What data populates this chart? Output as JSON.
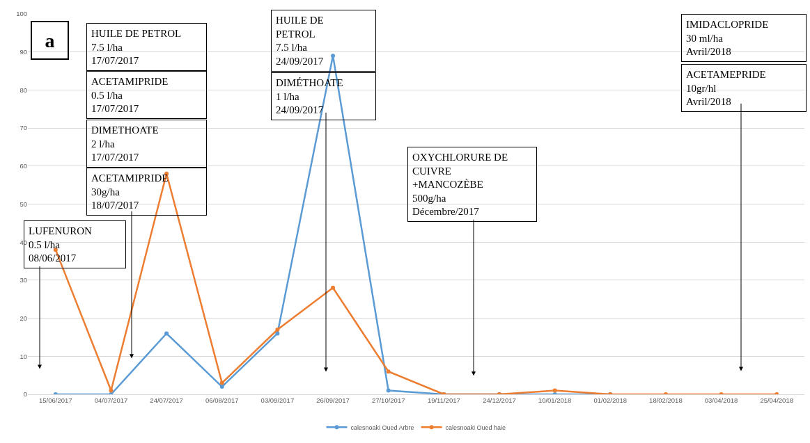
{
  "chart_data": {
    "type": "line",
    "categories": [
      "15/06/2017",
      "04/07/2017",
      "24/07/2017",
      "06/08/2017",
      "03/09/2017",
      "26/09/2017",
      "27/10/2017",
      "19/11/2017",
      "24/12/2017",
      "10/01/2018",
      "01/02/2018",
      "18/02/2018",
      "03/04/2018",
      "25/04/2018"
    ],
    "series": [
      {
        "name": "calesnoaki Oued Arbre",
        "color": "#5b9bd5",
        "values": [
          0,
          0,
          16,
          2,
          16,
          89,
          1,
          0,
          0,
          0,
          0,
          null,
          null,
          null
        ]
      },
      {
        "name": "calesnoaki Oued haie",
        "color": "#ed7d31",
        "values": [
          38,
          1,
          58,
          3,
          17,
          28,
          6,
          0,
          0,
          1,
          0,
          0,
          0,
          0
        ]
      }
    ],
    "ylim": [
      0,
      100
    ],
    "yticks": [
      0,
      10,
      20,
      30,
      40,
      50,
      60,
      70,
      80,
      90,
      100
    ],
    "grid": "y",
    "legend": "bottom",
    "marker": "circle",
    "line_style": "solid",
    "annotations": [
      "a",
      "HUILE DE PETROL\n7.5 l/ha\n17/07/2017",
      "ACETAMIPRIDE\n0.5 l/ha\n17/07/2017",
      "DIMETHOATE\n2 l/ha\n17/07/2017",
      "ACETAMIPRIDE\n30g/ha\n18/07/2017",
      "HUILE DE\nPETROL\n7.5 l/ha\n24/09/2017",
      "DIMÉTHOATE\n1 l/ha\n24/09/2017",
      "OXYCHLORURE DE\nCUIVRE\n+MANCOZÈBE\n500g/ha\nDécembre/2017",
      "IMIDACLOPRIDE\n30 ml/ha\nAvril/2018",
      "ACETAMEPRIDE\n10gr/hl\nAvril/2018",
      "LUFENURON\n0.5 l/ha\n08/06/2017"
    ]
  }
}
